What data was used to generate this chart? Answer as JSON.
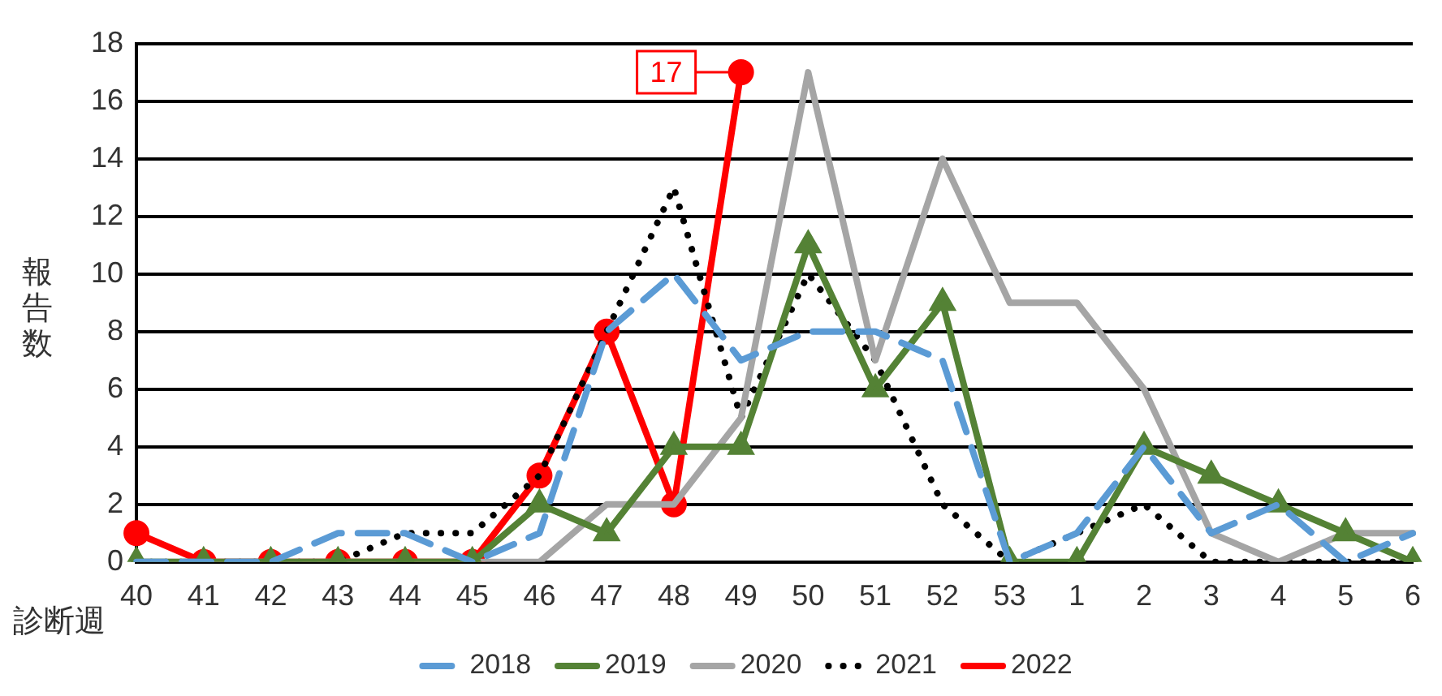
{
  "chart_data": {
    "type": "line",
    "ylabel": "報告数",
    "xlabel": "診断週",
    "categories": [
      "40",
      "41",
      "42",
      "43",
      "44",
      "45",
      "46",
      "47",
      "48",
      "49",
      "50",
      "51",
      "52",
      "53",
      "1",
      "2",
      "3",
      "4",
      "5",
      "6"
    ],
    "ylim": [
      0,
      18
    ],
    "yticks": [
      0,
      2,
      4,
      6,
      8,
      10,
      12,
      14,
      16,
      18
    ],
    "grid": "y",
    "legend": "bottom",
    "annotations": [
      {
        "text": "17",
        "x": "49",
        "y": 17
      }
    ],
    "series": [
      {
        "name": "2018",
        "color": "#5b9bd5",
        "line_style": "dashed",
        "marker": "none",
        "values": [
          0,
          0,
          0,
          1,
          1,
          0,
          1,
          8,
          10,
          7,
          8,
          8,
          7,
          0,
          1,
          4,
          1,
          2,
          0,
          1
        ]
      },
      {
        "name": "2019",
        "color": "#548235",
        "line_style": "solid",
        "marker": "triangle",
        "values": [
          0,
          0,
          0,
          0,
          0,
          0,
          2,
          1,
          4,
          4,
          11,
          6,
          9,
          0,
          0,
          4,
          3,
          2,
          1,
          0
        ]
      },
      {
        "name": "2020",
        "color": "#a5a5a5",
        "line_style": "solid",
        "marker": "none",
        "values": [
          0,
          0,
          0,
          0,
          0,
          0,
          0,
          2,
          2,
          5,
          17,
          7,
          14,
          9,
          9,
          6,
          1,
          0,
          1,
          1
        ]
      },
      {
        "name": "2021",
        "color": "#000000",
        "line_style": "dotted",
        "marker": "none",
        "values": [
          0,
          0,
          0,
          0,
          1,
          1,
          3,
          8,
          13,
          5,
          10,
          7,
          2,
          0,
          1,
          2,
          0,
          0,
          0,
          0
        ]
      },
      {
        "name": "2022",
        "color": "#ff0000",
        "line_style": "solid",
        "marker": "circle",
        "values": [
          1,
          0,
          0,
          0,
          0,
          0,
          3,
          8,
          2,
          17,
          null,
          null,
          null,
          null,
          null,
          null,
          null,
          null,
          null,
          null
        ]
      }
    ]
  }
}
